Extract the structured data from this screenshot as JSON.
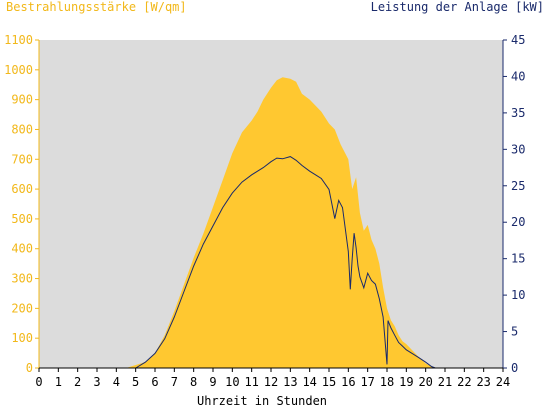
{
  "chart_data": {
    "type": "area",
    "title_left": "Bestrahlungsstärke [W/qm]",
    "title_right": "Leistung der Anlage [kW]",
    "xlabel": "Uhrzeit in Stunden",
    "x_ticks": [
      0,
      1,
      2,
      3,
      4,
      5,
      6,
      7,
      8,
      9,
      10,
      11,
      12,
      13,
      14,
      15,
      16,
      17,
      18,
      19,
      20,
      21,
      22,
      23,
      24
    ],
    "xlim": [
      0,
      24
    ],
    "y_left": {
      "lim": [
        0,
        1100
      ],
      "ticks": [
        0,
        100,
        200,
        300,
        400,
        500,
        600,
        700,
        800,
        900,
        1000,
        1100
      ]
    },
    "y_right": {
      "lim": [
        0,
        45
      ],
      "ticks": [
        0,
        5,
        10,
        15,
        20,
        25,
        30,
        35,
        40,
        45
      ]
    },
    "grid": false,
    "colors": {
      "irradiance_fill": "#ffc830",
      "power_line": "#1a2a6b",
      "plot_bg": "#dcdcdc",
      "left_axis": "#f2b81a",
      "right_axis": "#1a2a6b"
    },
    "series": [
      {
        "axis": "left",
        "x": [
          0,
          4.5,
          5.0,
          5.5,
          6.0,
          6.5,
          7.0,
          7.5,
          8.0,
          8.5,
          9.0,
          9.5,
          10.0,
          10.5,
          11.0,
          11.3,
          11.6,
          12.0,
          12.3,
          12.6,
          13.0,
          13.3,
          13.6,
          14.0,
          14.3,
          14.6,
          15.0,
          15.3,
          15.6,
          16.0,
          16.2,
          16.4,
          16.6,
          16.8,
          17.0,
          17.2,
          17.4,
          17.6,
          17.8,
          18.0,
          18.2,
          18.4,
          18.6,
          18.8,
          19.0,
          19.3,
          19.6,
          20.0,
          20.3,
          20.6,
          24
        ],
        "values": [
          0,
          0,
          10,
          20,
          50,
          110,
          190,
          280,
          370,
          450,
          540,
          630,
          720,
          790,
          830,
          860,
          900,
          940,
          965,
          975,
          970,
          960,
          920,
          900,
          880,
          860,
          820,
          800,
          750,
          700,
          600,
          640,
          520,
          460,
          480,
          430,
          400,
          350,
          270,
          200,
          160,
          140,
          110,
          90,
          80,
          60,
          40,
          15,
          5,
          0,
          0
        ]
      },
      {
        "axis": "right",
        "x": [
          0,
          5.0,
          5.5,
          6.0,
          6.5,
          7.0,
          7.5,
          8.0,
          8.5,
          9.0,
          9.5,
          10.0,
          10.5,
          11.0,
          11.3,
          11.6,
          12.0,
          12.3,
          12.6,
          13.0,
          13.3,
          13.6,
          14.0,
          14.3,
          14.6,
          15.0,
          15.3,
          15.5,
          15.7,
          16.0,
          16.1,
          16.2,
          16.3,
          16.4,
          16.5,
          16.6,
          16.8,
          17.0,
          17.2,
          17.4,
          17.6,
          17.8,
          18.0,
          18.05,
          18.2,
          18.4,
          18.6,
          18.8,
          19.0,
          19.3,
          19.6,
          20.0,
          20.3,
          20.5,
          24
        ],
        "values": [
          0,
          0,
          0.8,
          2.0,
          4.0,
          7.0,
          10.5,
          14.0,
          17.0,
          19.5,
          22.0,
          24.0,
          25.5,
          26.5,
          27.0,
          27.5,
          28.3,
          28.8,
          28.7,
          29.0,
          28.5,
          27.8,
          27.0,
          26.5,
          26.0,
          24.5,
          20.5,
          23.0,
          22.0,
          16.0,
          10.8,
          15.0,
          18.5,
          16.5,
          14.0,
          12.5,
          11.0,
          13.0,
          12.0,
          11.5,
          9.5,
          7.0,
          0.5,
          6.5,
          5.5,
          4.5,
          3.5,
          3.0,
          2.5,
          2.0,
          1.5,
          0.8,
          0.2,
          0,
          0
        ]
      }
    ]
  }
}
